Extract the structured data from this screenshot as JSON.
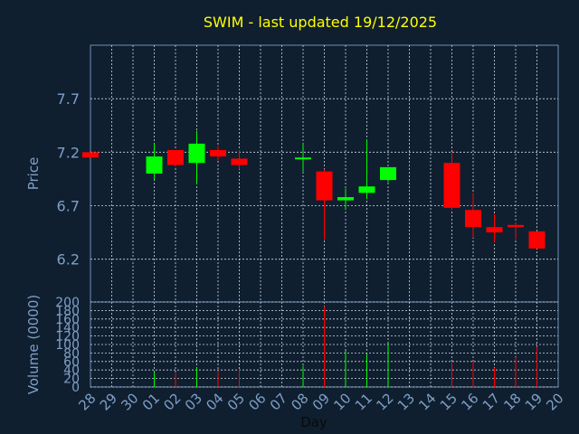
{
  "chart_data": [
    {
      "type": "candlestick",
      "title": "SWIM - last updated 19/12/2025",
      "ylabel": "Price",
      "ylim": [
        5.8,
        8.2
      ],
      "yticks": [
        "6.2",
        "6.7",
        "7.2",
        "7.7"
      ],
      "categories": [
        "28",
        "29",
        "30",
        "01",
        "02",
        "03",
        "04",
        "05",
        "06",
        "07",
        "08",
        "09",
        "10",
        "11",
        "12",
        "13",
        "14",
        "15",
        "16",
        "17",
        "18",
        "19",
        "20"
      ],
      "candles": [
        {
          "day": "28",
          "open": 7.2,
          "close": 7.15,
          "high": 7.2,
          "low": 7.15
        },
        {
          "day": "01",
          "open": 7.0,
          "close": 7.16,
          "high": 7.28,
          "low": 6.95
        },
        {
          "day": "02",
          "open": 7.22,
          "close": 7.08,
          "high": 7.22,
          "low": 7.06
        },
        {
          "day": "03",
          "open": 7.1,
          "close": 7.28,
          "high": 7.4,
          "low": 6.9
        },
        {
          "day": "04",
          "open": 7.22,
          "close": 7.16,
          "high": 7.26,
          "low": 7.12
        },
        {
          "day": "05",
          "open": 7.14,
          "close": 7.08,
          "high": 7.22,
          "low": 7.04
        },
        {
          "day": "08",
          "open": 7.14,
          "close": 7.15,
          "high": 7.28,
          "low": 7.02
        },
        {
          "day": "09",
          "open": 7.02,
          "close": 6.75,
          "high": 7.04,
          "low": 6.38
        },
        {
          "day": "10",
          "open": 6.75,
          "close": 6.78,
          "high": 6.86,
          "low": 6.66
        },
        {
          "day": "11",
          "open": 6.82,
          "close": 6.88,
          "high": 7.32,
          "low": 6.76
        },
        {
          "day": "12",
          "open": 6.94,
          "close": 7.06,
          "high": 7.06,
          "low": 6.92
        },
        {
          "day": "15",
          "open": 7.1,
          "close": 6.68,
          "high": 7.2,
          "low": 6.66
        },
        {
          "day": "16",
          "open": 6.66,
          "close": 6.5,
          "high": 6.82,
          "low": 6.4
        },
        {
          "day": "17",
          "open": 6.5,
          "close": 6.45,
          "high": 6.62,
          "low": 6.36
        },
        {
          "day": "18",
          "open": 6.52,
          "close": 6.5,
          "high": 6.54,
          "low": 6.38
        },
        {
          "day": "19",
          "open": 6.46,
          "close": 6.3,
          "high": 6.46,
          "low": 6.3
        }
      ]
    },
    {
      "type": "bar",
      "ylabel": "Volume (0000)",
      "xlabel": "Day",
      "ylim": [
        0,
        200
      ],
      "yticks": [
        "0",
        "20",
        "40",
        "60",
        "80",
        "100",
        "120",
        "140",
        "160",
        "180",
        "200"
      ],
      "categories": [
        "28",
        "29",
        "30",
        "01",
        "02",
        "03",
        "04",
        "05",
        "06",
        "07",
        "08",
        "09",
        "10",
        "11",
        "12",
        "13",
        "14",
        "15",
        "16",
        "17",
        "18",
        "19",
        "20"
      ],
      "bars": [
        {
          "day": "01",
          "value": 35,
          "color": "#00ff00"
        },
        {
          "day": "02",
          "value": 32,
          "color": "#ff0000"
        },
        {
          "day": "03",
          "value": 45,
          "color": "#00ff00"
        },
        {
          "day": "04",
          "value": 38,
          "color": "#ff0000"
        },
        {
          "day": "05",
          "value": 42,
          "color": "#ff0000"
        },
        {
          "day": "08",
          "value": 50,
          "color": "#00ff00"
        },
        {
          "day": "09",
          "value": 190,
          "color": "#ff0000"
        },
        {
          "day": "10",
          "value": 85,
          "color": "#00ff00"
        },
        {
          "day": "11",
          "value": 78,
          "color": "#00ff00"
        },
        {
          "day": "12",
          "value": 102,
          "color": "#00ff00"
        },
        {
          "day": "15",
          "value": 58,
          "color": "#ff0000"
        },
        {
          "day": "16",
          "value": 60,
          "color": "#ff0000"
        },
        {
          "day": "17",
          "value": 45,
          "color": "#ff0000"
        },
        {
          "day": "18",
          "value": 70,
          "color": "#ff0000"
        },
        {
          "day": "19",
          "value": 95,
          "color": "#ff0000"
        }
      ]
    }
  ],
  "colors": {
    "background": "#0f1f30",
    "title": "#ffff00",
    "axis_text": "#7f9fc5",
    "grid": "#d0d8e0",
    "up": "#00ff00",
    "down": "#ff0000"
  }
}
